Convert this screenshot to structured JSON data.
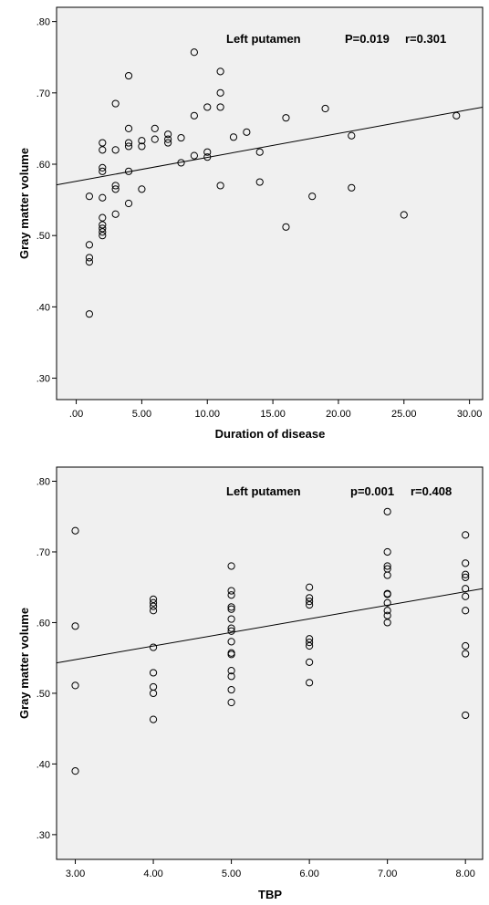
{
  "chart_data": [
    {
      "type": "scatter",
      "xlabel": "Duration of disease",
      "ylabel": "Gray matter volume",
      "annotation": "Left putamen",
      "p_label": "P=0.019",
      "r_label": "r=0.301",
      "xlim": [
        -1.5,
        31
      ],
      "ylim": [
        0.27,
        0.82
      ],
      "xticks": [
        0,
        5,
        10,
        15,
        20,
        25,
        30
      ],
      "xtick_labels": [
        ".00",
        "5.00",
        "10.00",
        "15.00",
        "20.00",
        "25.00",
        "30.00"
      ],
      "yticks": [
        0.3,
        0.4,
        0.5,
        0.6,
        0.7,
        0.8
      ],
      "ytick_labels": [
        ".30",
        ".40",
        ".50",
        ".60",
        ".70",
        ".80"
      ],
      "grid": false,
      "fit_line": {
        "x": [
          -1.5,
          31
        ],
        "y": [
          0.571,
          0.68
        ]
      },
      "points": [
        [
          1,
          0.39
        ],
        [
          1,
          0.463
        ],
        [
          1,
          0.469
        ],
        [
          1,
          0.487
        ],
        [
          1,
          0.555
        ],
        [
          2,
          0.5
        ],
        [
          2,
          0.505
        ],
        [
          2,
          0.51
        ],
        [
          2,
          0.515
        ],
        [
          2,
          0.525
        ],
        [
          2,
          0.553
        ],
        [
          2,
          0.59
        ],
        [
          2,
          0.595
        ],
        [
          2,
          0.62
        ],
        [
          2,
          0.63
        ],
        [
          3,
          0.53
        ],
        [
          3,
          0.565
        ],
        [
          3,
          0.57
        ],
        [
          3,
          0.62
        ],
        [
          3,
          0.685
        ],
        [
          4,
          0.545
        ],
        [
          4,
          0.59
        ],
        [
          4,
          0.625
        ],
        [
          4,
          0.63
        ],
        [
          4,
          0.65
        ],
        [
          4,
          0.724
        ],
        [
          5,
          0.565
        ],
        [
          5,
          0.625
        ],
        [
          5,
          0.633
        ],
        [
          6,
          0.635
        ],
        [
          6,
          0.65
        ],
        [
          7,
          0.63
        ],
        [
          7,
          0.635
        ],
        [
          7,
          0.642
        ],
        [
          8,
          0.602
        ],
        [
          8,
          0.637
        ],
        [
          9,
          0.612
        ],
        [
          9,
          0.668
        ],
        [
          9,
          0.757
        ],
        [
          10,
          0.61
        ],
        [
          10,
          0.617
        ],
        [
          10,
          0.68
        ],
        [
          11,
          0.57
        ],
        [
          11,
          0.68
        ],
        [
          11,
          0.7
        ],
        [
          11,
          0.73
        ],
        [
          12,
          0.638
        ],
        [
          13,
          0.645
        ],
        [
          14,
          0.575
        ],
        [
          14,
          0.617
        ],
        [
          16,
          0.512
        ],
        [
          16,
          0.665
        ],
        [
          18,
          0.555
        ],
        [
          19,
          0.678
        ],
        [
          21,
          0.567
        ],
        [
          21,
          0.64
        ],
        [
          25,
          0.529
        ],
        [
          29,
          0.668
        ]
      ]
    },
    {
      "type": "scatter",
      "xlabel": "TBP",
      "ylabel": "Gray matter volume",
      "annotation": "Left putamen",
      "p_label": "p=0.001",
      "r_label": "r=0.408",
      "xlim": [
        2.76,
        8.22
      ],
      "ylim": [
        0.265,
        0.82
      ],
      "xticks": [
        3,
        4,
        5,
        6,
        7,
        8
      ],
      "xtick_labels": [
        "3.00",
        "4.00",
        "5.00",
        "6.00",
        "7.00",
        "8.00"
      ],
      "yticks": [
        0.3,
        0.4,
        0.5,
        0.6,
        0.7,
        0.8
      ],
      "ytick_labels": [
        ".30",
        ".40",
        ".50",
        ".60",
        ".70",
        ".80"
      ],
      "grid": false,
      "fit_line": {
        "x": [
          2.76,
          8.22
        ],
        "y": [
          0.543,
          0.648
        ]
      },
      "points": [
        [
          3,
          0.39
        ],
        [
          3,
          0.511
        ],
        [
          3,
          0.595
        ],
        [
          3,
          0.73
        ],
        [
          4,
          0.463
        ],
        [
          4,
          0.5
        ],
        [
          4,
          0.509
        ],
        [
          4,
          0.529
        ],
        [
          4,
          0.565
        ],
        [
          4,
          0.617
        ],
        [
          4,
          0.623
        ],
        [
          4,
          0.628
        ],
        [
          4,
          0.633
        ],
        [
          5,
          0.487
        ],
        [
          5,
          0.505
        ],
        [
          5,
          0.524
        ],
        [
          5,
          0.532
        ],
        [
          5,
          0.555
        ],
        [
          5,
          0.557
        ],
        [
          5,
          0.573
        ],
        [
          5,
          0.588
        ],
        [
          5,
          0.592
        ],
        [
          5,
          0.605
        ],
        [
          5,
          0.619
        ],
        [
          5,
          0.622
        ],
        [
          5,
          0.639
        ],
        [
          5,
          0.645
        ],
        [
          5,
          0.68
        ],
        [
          6,
          0.515
        ],
        [
          6,
          0.544
        ],
        [
          6,
          0.567
        ],
        [
          6,
          0.572
        ],
        [
          6,
          0.577
        ],
        [
          6,
          0.625
        ],
        [
          6,
          0.63
        ],
        [
          6,
          0.635
        ],
        [
          6,
          0.65
        ],
        [
          7,
          0.6
        ],
        [
          7,
          0.61
        ],
        [
          7,
          0.617
        ],
        [
          7,
          0.628
        ],
        [
          7,
          0.64
        ],
        [
          7,
          0.641
        ],
        [
          7,
          0.667
        ],
        [
          7,
          0.676
        ],
        [
          7,
          0.68
        ],
        [
          7,
          0.7
        ],
        [
          7,
          0.757
        ],
        [
          8,
          0.469
        ],
        [
          8,
          0.556
        ],
        [
          8,
          0.567
        ],
        [
          8,
          0.617
        ],
        [
          8,
          0.637
        ],
        [
          8,
          0.648
        ],
        [
          8,
          0.664
        ],
        [
          8,
          0.668
        ],
        [
          8,
          0.684
        ],
        [
          8,
          0.724
        ]
      ]
    }
  ]
}
